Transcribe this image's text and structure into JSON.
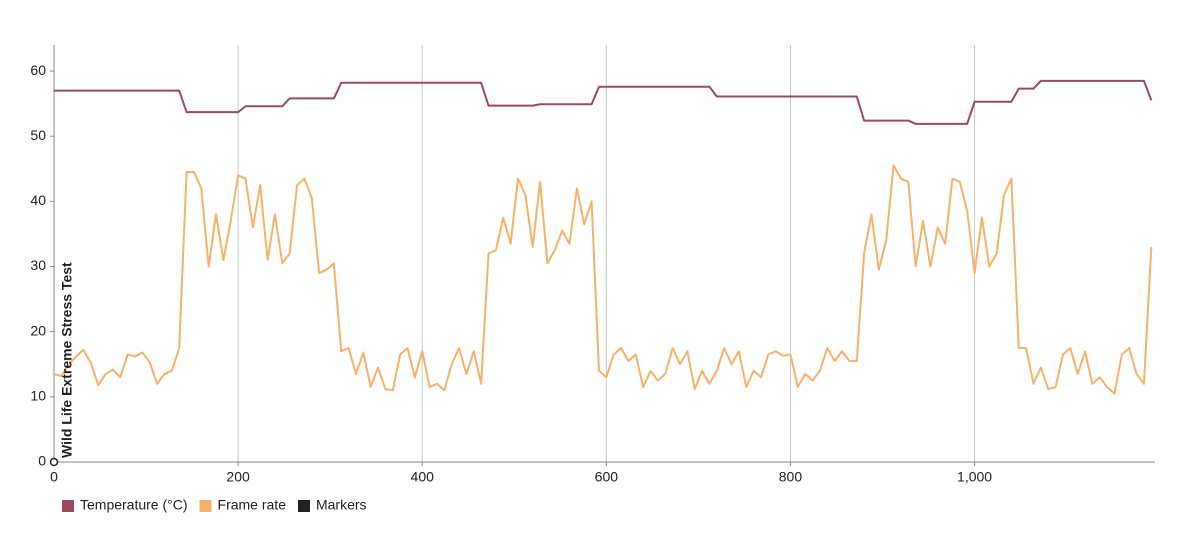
{
  "chart_data": {
    "type": "line",
    "x": [
      0,
      8,
      16,
      24,
      32,
      40,
      48,
      56,
      64,
      72,
      80,
      88,
      96,
      104,
      112,
      120,
      128,
      136,
      144,
      152,
      160,
      168,
      176,
      184,
      192,
      200,
      208,
      216,
      224,
      232,
      240,
      248,
      256,
      264,
      272,
      280,
      288,
      296,
      304,
      312,
      320,
      328,
      336,
      344,
      352,
      360,
      368,
      376,
      384,
      392,
      400,
      408,
      416,
      424,
      432,
      440,
      448,
      456,
      464,
      472,
      480,
      488,
      496,
      504,
      512,
      520,
      528,
      536,
      544,
      552,
      560,
      568,
      576,
      584,
      592,
      600,
      608,
      616,
      624,
      632,
      640,
      648,
      656,
      664,
      672,
      680,
      688,
      696,
      704,
      712,
      720,
      728,
      736,
      744,
      752,
      760,
      768,
      776,
      784,
      792,
      800,
      808,
      816,
      824,
      832,
      840,
      848,
      856,
      864,
      872,
      880,
      888,
      896,
      904,
      912,
      920,
      928,
      936,
      944,
      952,
      960,
      968,
      976,
      984,
      992,
      1000,
      1008,
      1016,
      1024,
      1032,
      1040,
      1048,
      1056,
      1064,
      1072,
      1080,
      1088,
      1096,
      1104,
      1112,
      1120,
      1128,
      1136,
      1144,
      1152,
      1160,
      1168,
      1176,
      1184,
      1192
    ],
    "series": [
      {
        "name": "Temperature (°C)",
        "color": "#9b4b60",
        "values": [
          57,
          57,
          57,
          57,
          57,
          57,
          57,
          57,
          57,
          57,
          57,
          57,
          57,
          57,
          57,
          57,
          57,
          57,
          53.7,
          53.7,
          53.7,
          53.7,
          53.7,
          53.7,
          53.7,
          53.7,
          54.6,
          54.6,
          54.6,
          54.6,
          54.6,
          54.6,
          55.8,
          55.8,
          55.8,
          55.8,
          55.8,
          55.8,
          55.8,
          58.2,
          58.2,
          58.2,
          58.2,
          58.2,
          58.2,
          58.2,
          58.2,
          58.2,
          58.2,
          58.2,
          58.2,
          58.2,
          58.2,
          58.2,
          58.2,
          58.2,
          58.2,
          58.2,
          58.2,
          54.7,
          54.7,
          54.7,
          54.7,
          54.7,
          54.7,
          54.7,
          54.9,
          54.9,
          54.9,
          54.9,
          54.9,
          54.9,
          54.9,
          54.9,
          57.6,
          57.6,
          57.6,
          57.6,
          57.6,
          57.6,
          57.6,
          57.6,
          57.6,
          57.6,
          57.6,
          57.6,
          57.6,
          57.6,
          57.6,
          57.6,
          56.1,
          56.1,
          56.1,
          56.1,
          56.1,
          56.1,
          56.1,
          56.1,
          56.1,
          56.1,
          56.1,
          56.1,
          56.1,
          56.1,
          56.1,
          56.1,
          56.1,
          56.1,
          56.1,
          56.1,
          52.4,
          52.4,
          52.4,
          52.4,
          52.4,
          52.4,
          52.4,
          51.9,
          51.9,
          51.9,
          51.9,
          51.9,
          51.9,
          51.9,
          51.9,
          55.3,
          55.3,
          55.3,
          55.3,
          55.3,
          55.3,
          57.3,
          57.3,
          57.3,
          58.5,
          58.5,
          58.5,
          58.5,
          58.5,
          58.5,
          58.5,
          58.5,
          58.5,
          58.5,
          58.5,
          58.5,
          58.5,
          58.5,
          58.5,
          55.5
        ]
      },
      {
        "name": "Frame rate",
        "color": "#f6b26b",
        "values": [
          13.5,
          13.2,
          15,
          16.2,
          17.2,
          15.2,
          11.8,
          13.5,
          14.2,
          13,
          16.5,
          16.2,
          16.8,
          15.3,
          12,
          13.5,
          14,
          17.5,
          44.5,
          44.5,
          42,
          30,
          38,
          31,
          37,
          44,
          43.5,
          36,
          42.5,
          31,
          38,
          30.5,
          32,
          42.5,
          43.5,
          40.5,
          29,
          29.5,
          30.5,
          17,
          17.5,
          13.5,
          16.8,
          11.5,
          14.5,
          11.2,
          11,
          16.5,
          17.5,
          13,
          17,
          11.5,
          12,
          11,
          15,
          17.5,
          13.5,
          17,
          12,
          32,
          32.5,
          37.5,
          33.5,
          43.5,
          41,
          33,
          43,
          30.5,
          32.5,
          35.5,
          33.5,
          42,
          36.5,
          40,
          14,
          13,
          16.5,
          17.5,
          15.5,
          16.5,
          11.5,
          14,
          12.5,
          13.5,
          17.5,
          15,
          17,
          11.2,
          14,
          12,
          14,
          17.5,
          15,
          17,
          11.5,
          14,
          13,
          16.5,
          17,
          16.3,
          16.5,
          11.5,
          13.5,
          12.5,
          14,
          17.5,
          15.5,
          17,
          15.5,
          15.5,
          32,
          38,
          29.5,
          34,
          45.5,
          43.5,
          43,
          30,
          37,
          30,
          36,
          33.5,
          43.5,
          43,
          38.5,
          29,
          37.5,
          30,
          32,
          41,
          43.5,
          17.5,
          17.5,
          12,
          14.5,
          11.2,
          11.5,
          16.5,
          17.5,
          13.5,
          17,
          12,
          13,
          11.5,
          10.5,
          16.5,
          17.5,
          13.5,
          12,
          33
        ]
      },
      {
        "name": "Markers",
        "color": "#222222",
        "x": [
          0
        ],
        "values": [
          0
        ],
        "labels": [
          "Wild Life Extreme Stress Test"
        ]
      }
    ],
    "xlim": [
      0,
      1196
    ],
    "ylim": [
      0,
      64
    ],
    "xticks": [
      0,
      200,
      400,
      600,
      800,
      {
        "value": 1000,
        "label": "1,000"
      }
    ],
    "yticks": [
      0,
      10,
      20,
      30,
      40,
      50,
      60
    ],
    "grid": "x",
    "legend": "bottom-left"
  }
}
